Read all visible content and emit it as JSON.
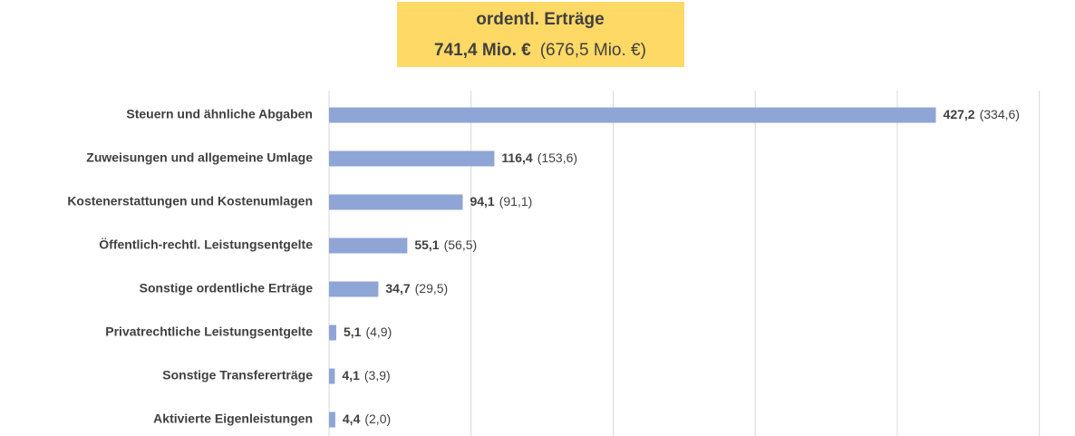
{
  "chart_data": {
    "type": "bar",
    "orientation": "horizontal",
    "title": "ordentl. Erträge",
    "total_label": "741,4 Mio. €",
    "prior_total_label": "(676,5 Mio. €)",
    "categories": [
      "Steuern und ähnliche Abgaben",
      "Zuweisungen und allgemeine Umlage",
      "Kostenerstattungen und Kostenumlagen",
      "Öffentlich-rechtl. Leistungsentgelte",
      "Sonstige ordentliche Erträge",
      "Privatrechtliche Leistungsentgelte",
      "Sonstige Transfererträge",
      "Aktivierte Eigenleistungen"
    ],
    "values": [
      427.2,
      116.4,
      94.1,
      55.1,
      34.7,
      5.1,
      4.1,
      4.4
    ],
    "value_labels": [
      "427,2",
      "116,4",
      "94,1",
      "55,1",
      "34,7",
      "5,1",
      "4,1",
      "4,4"
    ],
    "prior_values": [
      334.6,
      153.6,
      91.1,
      56.5,
      29.5,
      4.9,
      3.9,
      2.0
    ],
    "prior_value_labels": [
      "(334,6)",
      "(153,6)",
      "(91,1)",
      "(56,5)",
      "(29,5)",
      "(4,9)",
      "(3,9)",
      "(2,0)"
    ],
    "color": "#8fa5d6",
    "title_box_color": "#ffd966",
    "xlim": [
      0,
      520
    ],
    "xticks": [
      0,
      100,
      200,
      300,
      400,
      500
    ],
    "grid": true
  }
}
